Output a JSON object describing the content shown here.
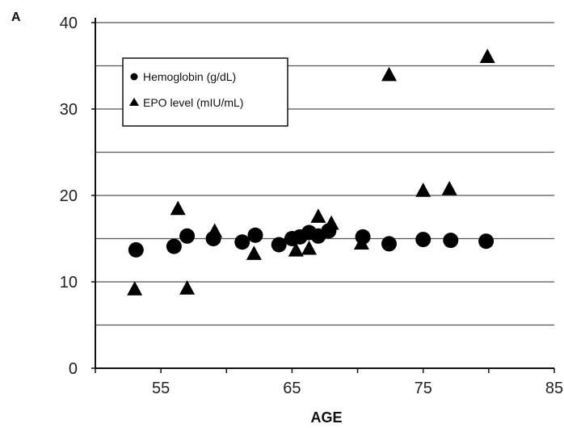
{
  "panel_label": "A",
  "chart_data": {
    "type": "scatter",
    "xlabel": "AGE",
    "ylabel": "",
    "xlim": [
      50,
      85
    ],
    "ylim": [
      0,
      40
    ],
    "x_ticks": [
      55,
      65,
      75,
      85
    ],
    "x_tick_labels": [
      "55",
      "65",
      "75",
      "85"
    ],
    "y_ticks": [
      0,
      10,
      20,
      30,
      40
    ],
    "y_tick_labels": [
      "0",
      "10",
      "20",
      "30",
      "40"
    ],
    "y_gridlines": [
      5,
      10,
      15,
      20,
      25,
      30,
      35,
      40
    ],
    "grid": true,
    "legend_position": "top-left",
    "series": [
      {
        "name": "Hemoglobin (g/dL)",
        "marker": "circle",
        "color": "#000000",
        "points": [
          {
            "x": 53.1,
            "y": 13.7
          },
          {
            "x": 56.0,
            "y": 14.1
          },
          {
            "x": 57.0,
            "y": 15.3
          },
          {
            "x": 59.0,
            "y": 15.0
          },
          {
            "x": 61.2,
            "y": 14.6
          },
          {
            "x": 62.2,
            "y": 15.4
          },
          {
            "x": 64.0,
            "y": 14.3
          },
          {
            "x": 65.0,
            "y": 15.0
          },
          {
            "x": 65.6,
            "y": 15.2
          },
          {
            "x": 66.3,
            "y": 15.7
          },
          {
            "x": 67.0,
            "y": 15.3
          },
          {
            "x": 67.8,
            "y": 15.9
          },
          {
            "x": 70.4,
            "y": 15.2
          },
          {
            "x": 72.4,
            "y": 14.4
          },
          {
            "x": 75.0,
            "y": 14.9
          },
          {
            "x": 77.1,
            "y": 14.8
          },
          {
            "x": 79.8,
            "y": 14.7
          }
        ]
      },
      {
        "name": "EPO level (mIU/mL)",
        "marker": "triangle",
        "color": "#000000",
        "points": [
          {
            "x": 53.0,
            "y": 9.1
          },
          {
            "x": 56.3,
            "y": 18.4
          },
          {
            "x": 57.0,
            "y": 9.2
          },
          {
            "x": 59.1,
            "y": 15.8
          },
          {
            "x": 62.1,
            "y": 13.2
          },
          {
            "x": 65.3,
            "y": 13.6
          },
          {
            "x": 66.3,
            "y": 13.8
          },
          {
            "x": 67.0,
            "y": 17.5
          },
          {
            "x": 68.0,
            "y": 16.7
          },
          {
            "x": 70.3,
            "y": 14.4
          },
          {
            "x": 72.4,
            "y": 33.9
          },
          {
            "x": 75.0,
            "y": 20.5
          },
          {
            "x": 77.0,
            "y": 20.7
          },
          {
            "x": 79.9,
            "y": 36.0
          }
        ]
      }
    ]
  }
}
